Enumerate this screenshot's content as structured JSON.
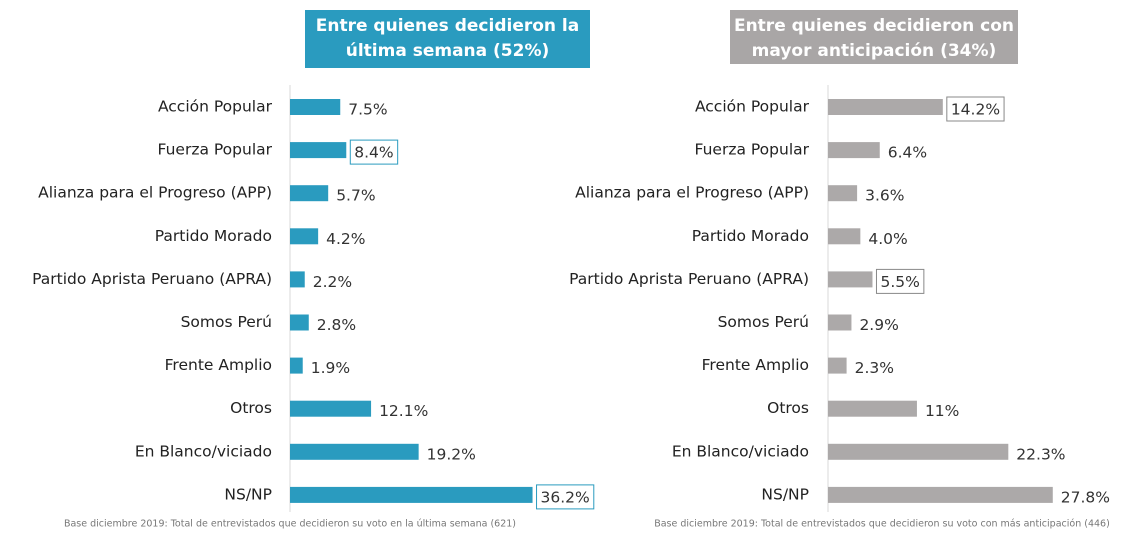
{
  "chart_data": [
    {
      "type": "hbar",
      "title": [
        "Entre quienes decidieron la",
        "última semana (52%)"
      ],
      "categories": [
        "Acción Popular",
        "Fuerza Popular",
        "Alianza para el Progreso (APP)",
        "Partido Morado",
        "Partido Aprista Peruano (APRA)",
        "Somos Perú",
        "Frente Amplio",
        "Otros",
        "En Blanco/viciado",
        "NS/NP"
      ],
      "values": [
        7.5,
        8.4,
        5.7,
        4.2,
        2.2,
        2.8,
        1.9,
        12.1,
        19.2,
        36.2
      ],
      "value_labels": [
        "7.5%",
        "8.4%",
        "5.7%",
        "4.2%",
        "2.2%",
        "2.8%",
        "1.9%",
        "12.1%",
        "19.2%",
        "36.2%"
      ],
      "boxed": [
        false,
        true,
        false,
        false,
        false,
        false,
        false,
        false,
        false,
        true
      ],
      "color": "#2a9bbf",
      "title_color": "#2a9bbf",
      "xlim": [
        0,
        40
      ],
      "note": "Base diciembre 2019: Total de entrevistados que decidieron su voto en la última semana (621)"
    },
    {
      "type": "hbar",
      "title": [
        "Entre quienes decidieron con",
        "mayor anticipación (34%)"
      ],
      "categories": [
        "Acción Popular",
        "Fuerza Popular",
        "Alianza para el Progreso (APP)",
        "Partido Morado",
        "Partido Aprista Peruano (APRA)",
        "Somos Perú",
        "Frente Amplio",
        "Otros",
        "En Blanco/viciado",
        "NS/NP"
      ],
      "values": [
        14.2,
        6.4,
        3.6,
        4.0,
        5.5,
        2.9,
        2.3,
        11,
        22.3,
        27.8
      ],
      "value_labels": [
        "14.2%",
        "6.4%",
        "3.6%",
        "4.0%",
        "5.5%",
        "2.9%",
        "2.3%",
        "11%",
        "22.3%",
        "27.8%"
      ],
      "boxed": [
        true,
        false,
        false,
        false,
        true,
        false,
        false,
        false,
        false,
        false
      ],
      "color": "#aca9a9",
      "title_color": "#a9a6a6",
      "xlim": [
        0,
        35
      ],
      "note": "Base diciembre 2019: Total de entrevistados que decidieron su voto con más anticipación (446)"
    }
  ]
}
